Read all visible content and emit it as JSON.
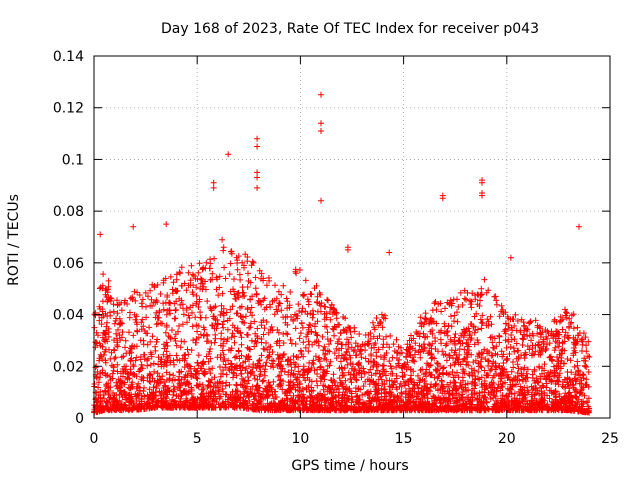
{
  "chart_data": {
    "type": "scatter",
    "title": "Day 168 of 2023, Rate Of TEC Index for receiver p043",
    "xlabel": "GPS time / hours",
    "ylabel": "ROTI / TECUs",
    "xlim": [
      0,
      25
    ],
    "ylim": [
      0,
      0.14
    ],
    "x_ticks": [
      0,
      5,
      10,
      15,
      20,
      25
    ],
    "y_ticks": [
      0,
      0.02,
      0.04,
      0.06,
      0.08,
      0.1,
      0.12,
      0.14
    ],
    "x_tick_labels": [
      "0",
      "5",
      "10",
      "15",
      "20",
      "25"
    ],
    "y_tick_labels": [
      "0",
      "0.02",
      "0.04",
      "0.06",
      "0.08",
      "0.1",
      "0.12",
      "0.14"
    ],
    "grid": true,
    "marker": "+",
    "series": [
      {
        "name": "ROTI",
        "color": "#ff0000",
        "data_range_hours": [
          0,
          24
        ],
        "notable_points": [
          {
            "x": 11.0,
            "y": 0.125
          },
          {
            "x": 11.0,
            "y": 0.114
          },
          {
            "x": 11.0,
            "y": 0.111
          },
          {
            "x": 11.0,
            "y": 0.084
          },
          {
            "x": 6.5,
            "y": 0.102
          },
          {
            "x": 7.9,
            "y": 0.108
          },
          {
            "x": 7.9,
            "y": 0.105
          },
          {
            "x": 7.9,
            "y": 0.095
          },
          {
            "x": 7.9,
            "y": 0.093
          },
          {
            "x": 7.9,
            "y": 0.089
          },
          {
            "x": 5.8,
            "y": 0.091
          },
          {
            "x": 5.8,
            "y": 0.089
          },
          {
            "x": 18.8,
            "y": 0.092
          },
          {
            "x": 18.8,
            "y": 0.091
          },
          {
            "x": 18.8,
            "y": 0.087
          },
          {
            "x": 18.8,
            "y": 0.086
          },
          {
            "x": 16.9,
            "y": 0.086
          },
          {
            "x": 16.9,
            "y": 0.085
          },
          {
            "x": 12.3,
            "y": 0.066
          },
          {
            "x": 12.3,
            "y": 0.065
          },
          {
            "x": 14.3,
            "y": 0.064
          },
          {
            "x": 20.2,
            "y": 0.062
          },
          {
            "x": 23.5,
            "y": 0.074
          },
          {
            "x": 1.9,
            "y": 0.074
          },
          {
            "x": 3.5,
            "y": 0.075
          },
          {
            "x": 0.3,
            "y": 0.071
          }
        ],
        "activity_envelope": [
          {
            "x": 0.0,
            "low": 0.002,
            "high": 0.04
          },
          {
            "x": 0.5,
            "low": 0.003,
            "high": 0.06
          },
          {
            "x": 1.0,
            "low": 0.003,
            "high": 0.045
          },
          {
            "x": 2.0,
            "low": 0.003,
            "high": 0.05
          },
          {
            "x": 3.0,
            "low": 0.004,
            "high": 0.052
          },
          {
            "x": 4.0,
            "low": 0.004,
            "high": 0.058
          },
          {
            "x": 5.0,
            "low": 0.004,
            "high": 0.06
          },
          {
            "x": 6.0,
            "low": 0.004,
            "high": 0.07
          },
          {
            "x": 7.0,
            "low": 0.004,
            "high": 0.065
          },
          {
            "x": 8.0,
            "low": 0.003,
            "high": 0.06
          },
          {
            "x": 9.0,
            "low": 0.003,
            "high": 0.05
          },
          {
            "x": 10.0,
            "low": 0.003,
            "high": 0.06
          },
          {
            "x": 11.0,
            "low": 0.003,
            "high": 0.05
          },
          {
            "x": 12.0,
            "low": 0.003,
            "high": 0.04
          },
          {
            "x": 13.0,
            "low": 0.003,
            "high": 0.032
          },
          {
            "x": 14.0,
            "low": 0.003,
            "high": 0.042
          },
          {
            "x": 15.0,
            "low": 0.003,
            "high": 0.025
          },
          {
            "x": 16.0,
            "low": 0.003,
            "high": 0.045
          },
          {
            "x": 17.0,
            "low": 0.003,
            "high": 0.045
          },
          {
            "x": 18.0,
            "low": 0.003,
            "high": 0.05
          },
          {
            "x": 19.0,
            "low": 0.003,
            "high": 0.055
          },
          {
            "x": 20.0,
            "low": 0.003,
            "high": 0.04
          },
          {
            "x": 21.0,
            "low": 0.003,
            "high": 0.04
          },
          {
            "x": 22.0,
            "low": 0.003,
            "high": 0.035
          },
          {
            "x": 23.0,
            "low": 0.003,
            "high": 0.045
          },
          {
            "x": 24.0,
            "low": 0.002,
            "high": 0.03
          }
        ]
      }
    ]
  }
}
